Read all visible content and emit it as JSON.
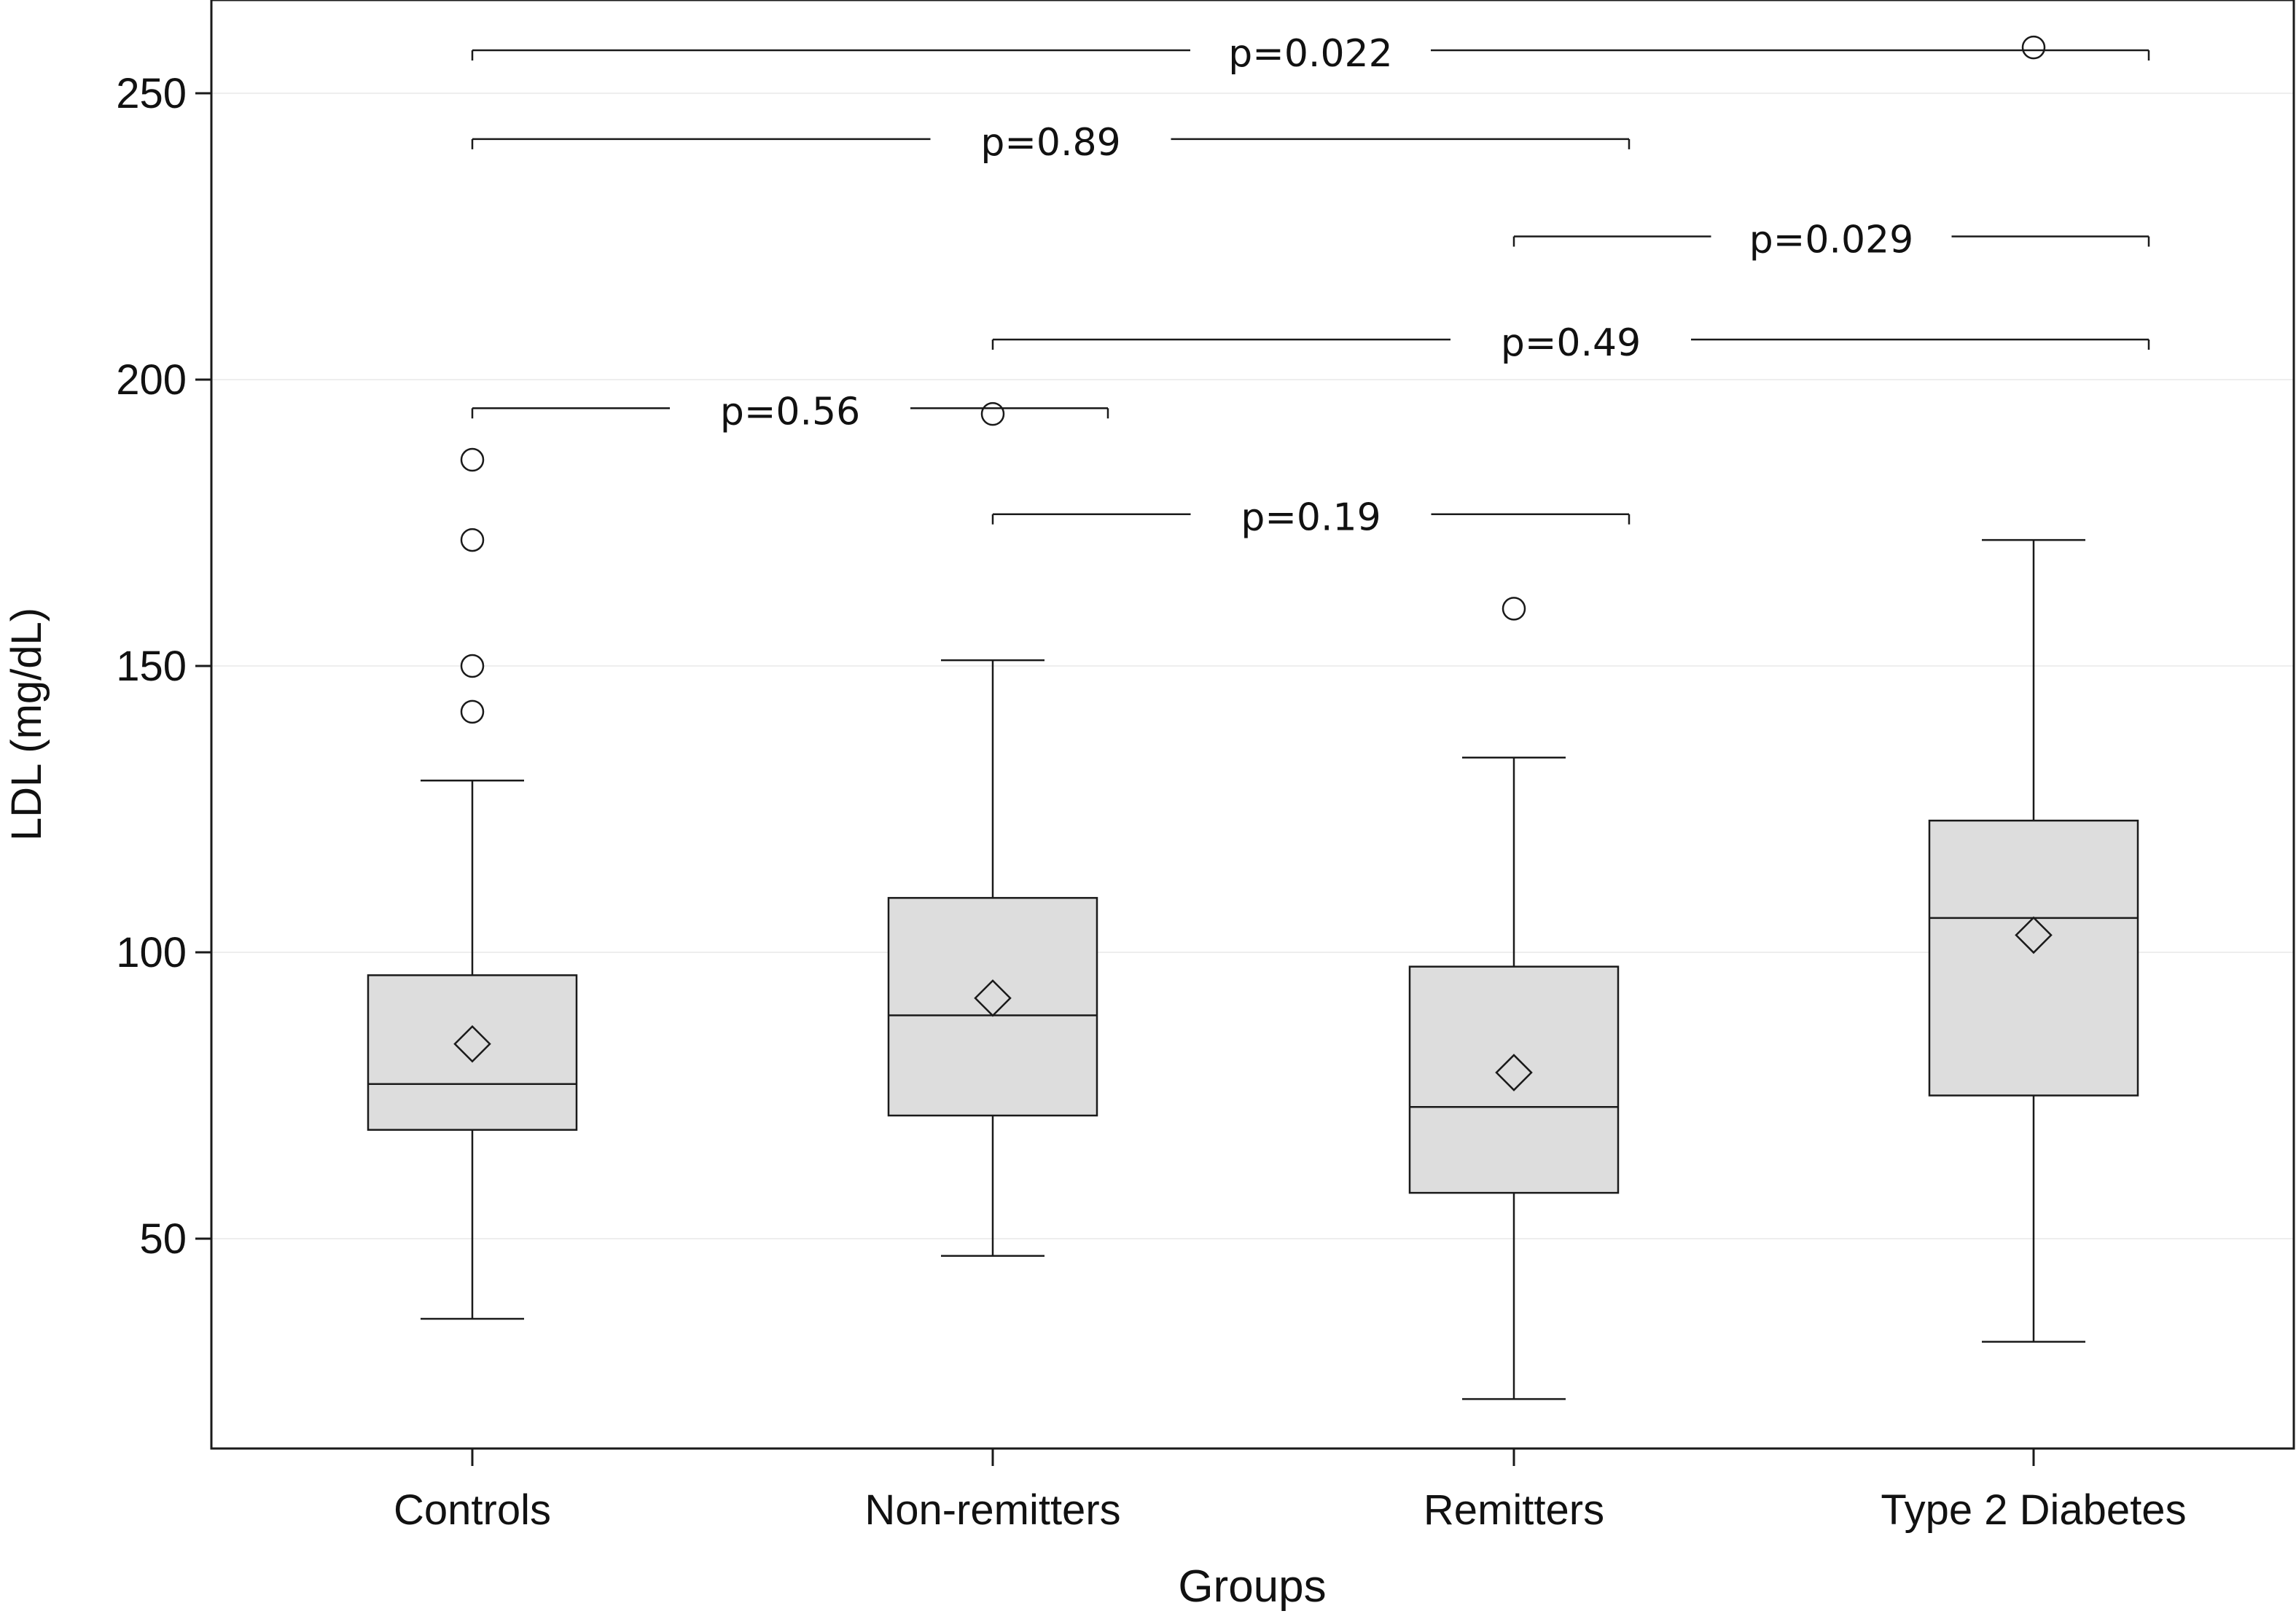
{
  "chart_data": {
    "type": "box",
    "xlabel": "Groups",
    "ylabel": "LDL (mg/dL)",
    "ylim": [
      13,
      263
    ],
    "yticks": [
      50,
      100,
      150,
      200,
      250
    ],
    "grid": "horizontal-faint",
    "categories": [
      "Controls",
      "Non-remitters",
      "Remitters",
      "Type 2 Diabetes"
    ],
    "boxes": [
      {
        "group": "Controls",
        "whisker_low": 36,
        "q1": 69,
        "median": 77,
        "q3": 96,
        "whisker_high": 130,
        "mean": 84,
        "outliers": [
          142,
          150,
          172,
          186
        ]
      },
      {
        "group": "Non-remitters",
        "whisker_low": 47,
        "q1": 71.5,
        "median": 89,
        "q3": 109.5,
        "whisker_high": 151,
        "mean": 92,
        "outliers": [
          194
        ]
      },
      {
        "group": "Remitters",
        "whisker_low": 22,
        "q1": 58,
        "median": 73,
        "q3": 97.5,
        "whisker_high": 134,
        "mean": 79,
        "outliers": [
          160
        ]
      },
      {
        "group": "Type 2 Diabetes",
        "whisker_low": 32,
        "q1": 75,
        "median": 106,
        "q3": 123,
        "whisker_high": 172,
        "mean": 103,
        "outliers": [
          258
        ]
      }
    ],
    "comparisons": [
      {
        "from": "Controls",
        "to": "Non-remitters",
        "level": 195,
        "label": "p=0.56"
      },
      {
        "from": "Non-remitters",
        "to": "Remitters",
        "level": 176.5,
        "label": "p=0.19"
      },
      {
        "from": "Non-remitters",
        "to": "Type 2 Diabetes",
        "level": 207,
        "label": "p=0.49"
      },
      {
        "from": "Remitters",
        "to": "Type 2 Diabetes",
        "level": 225,
        "label": "p=0.029"
      },
      {
        "from": "Controls",
        "to": "Remitters",
        "level": 242,
        "label": "p=0.89"
      },
      {
        "from": "Controls",
        "to": "Type 2 Diabetes",
        "level": 257.5,
        "label": "p=0.022"
      }
    ],
    "colors": {
      "box_fill": "#dddddd",
      "stroke": "#1a1a1a",
      "grid": "#eeeeee"
    }
  }
}
